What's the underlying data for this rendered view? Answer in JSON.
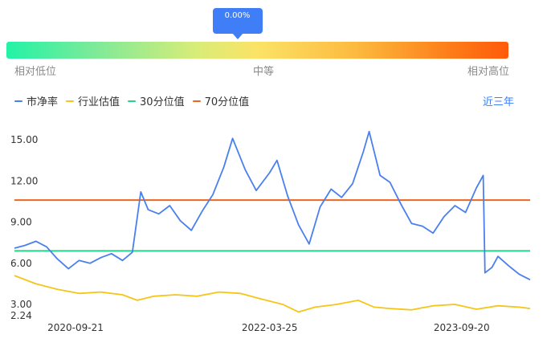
{
  "gauge": {
    "marker_value": "0.00%",
    "marker_fraction": 0.46,
    "low_label": "相对低位",
    "mid_label": "中等",
    "high_label": "相对高位"
  },
  "range_selector": "近三年",
  "colors": {
    "pe": "#4a7ff0",
    "industry": "#f5c518",
    "p30": "#22d58a",
    "p70": "#f0641e",
    "accent": "#3f7ef7"
  },
  "chart_data": {
    "type": "line",
    "legend": [
      "市净率",
      "行业估值",
      "30分位值",
      "70分位值"
    ],
    "x_tick_labels": [
      "2020-09-21",
      "2022-03-25",
      "2023-09-20"
    ],
    "x_range": [
      "2020-04-01",
      "2024-04-01"
    ],
    "y_ticks": [
      "2.24",
      "3.00",
      "6.00",
      "9.00",
      "12.00",
      "15.00"
    ],
    "ylim": [
      2.24,
      16.0
    ],
    "p30_value": 6.9,
    "p70_value": 10.6,
    "series": [
      {
        "name": "市净率",
        "points": [
          [
            "2020-04-01",
            7.1
          ],
          [
            "2020-05-01",
            7.3
          ],
          [
            "2020-06-01",
            7.6
          ],
          [
            "2020-07-01",
            7.2
          ],
          [
            "2020-08-01",
            6.3
          ],
          [
            "2020-09-01",
            5.6
          ],
          [
            "2020-10-01",
            6.2
          ],
          [
            "2020-11-01",
            6.0
          ],
          [
            "2020-12-01",
            6.4
          ],
          [
            "2021-01-01",
            6.7
          ],
          [
            "2021-02-01",
            6.2
          ],
          [
            "2021-03-01",
            6.8
          ],
          [
            "2021-03-25",
            11.2
          ],
          [
            "2021-04-15",
            9.9
          ],
          [
            "2021-05-15",
            9.6
          ],
          [
            "2021-06-15",
            10.2
          ],
          [
            "2021-07-15",
            9.1
          ],
          [
            "2021-08-15",
            8.4
          ],
          [
            "2021-09-15",
            9.8
          ],
          [
            "2021-10-15",
            11.0
          ],
          [
            "2021-11-15",
            13.0
          ],
          [
            "2021-12-10",
            15.1
          ],
          [
            "2022-01-15",
            12.8
          ],
          [
            "2022-02-15",
            11.3
          ],
          [
            "2022-03-25",
            12.6
          ],
          [
            "2022-04-15",
            13.5
          ],
          [
            "2022-05-15",
            10.9
          ],
          [
            "2022-06-15",
            8.8
          ],
          [
            "2022-07-15",
            7.4
          ],
          [
            "2022-08-15",
            10.1
          ],
          [
            "2022-09-15",
            11.4
          ],
          [
            "2022-10-15",
            10.8
          ],
          [
            "2022-11-15",
            11.8
          ],
          [
            "2022-12-15",
            14.1
          ],
          [
            "2023-01-01",
            15.6
          ],
          [
            "2023-02-01",
            12.4
          ],
          [
            "2023-03-01",
            11.9
          ],
          [
            "2023-04-01",
            10.3
          ],
          [
            "2023-05-01",
            8.9
          ],
          [
            "2023-06-01",
            8.7
          ],
          [
            "2023-07-01",
            8.2
          ],
          [
            "2023-08-01",
            9.4
          ],
          [
            "2023-09-01",
            10.2
          ],
          [
            "2023-10-01",
            9.7
          ],
          [
            "2023-11-01",
            11.5
          ],
          [
            "2023-11-20",
            12.4
          ],
          [
            "2023-11-25",
            5.3
          ],
          [
            "2023-12-15",
            5.7
          ],
          [
            "2024-01-01",
            6.5
          ],
          [
            "2024-02-01",
            5.8
          ],
          [
            "2024-03-01",
            5.2
          ],
          [
            "2024-04-01",
            4.8
          ]
        ]
      },
      {
        "name": "行业估值",
        "points": [
          [
            "2020-04-01",
            5.1
          ],
          [
            "2020-06-01",
            4.5
          ],
          [
            "2020-08-01",
            4.1
          ],
          [
            "2020-10-01",
            3.8
          ],
          [
            "2020-12-01",
            3.9
          ],
          [
            "2021-02-01",
            3.7
          ],
          [
            "2021-03-15",
            3.3
          ],
          [
            "2021-05-01",
            3.6
          ],
          [
            "2021-07-01",
            3.7
          ],
          [
            "2021-09-01",
            3.6
          ],
          [
            "2021-11-01",
            3.9
          ],
          [
            "2022-01-01",
            3.8
          ],
          [
            "2022-03-01",
            3.4
          ],
          [
            "2022-05-01",
            3.0
          ],
          [
            "2022-06-15",
            2.45
          ],
          [
            "2022-08-01",
            2.8
          ],
          [
            "2022-10-01",
            3.0
          ],
          [
            "2022-12-01",
            3.3
          ],
          [
            "2023-01-15",
            2.8
          ],
          [
            "2023-03-01",
            2.7
          ],
          [
            "2023-05-01",
            2.6
          ],
          [
            "2023-07-01",
            2.9
          ],
          [
            "2023-09-01",
            3.0
          ],
          [
            "2023-11-01",
            2.65
          ],
          [
            "2024-01-01",
            2.9
          ],
          [
            "2024-03-01",
            2.8
          ],
          [
            "2024-04-01",
            2.7
          ]
        ]
      }
    ]
  }
}
